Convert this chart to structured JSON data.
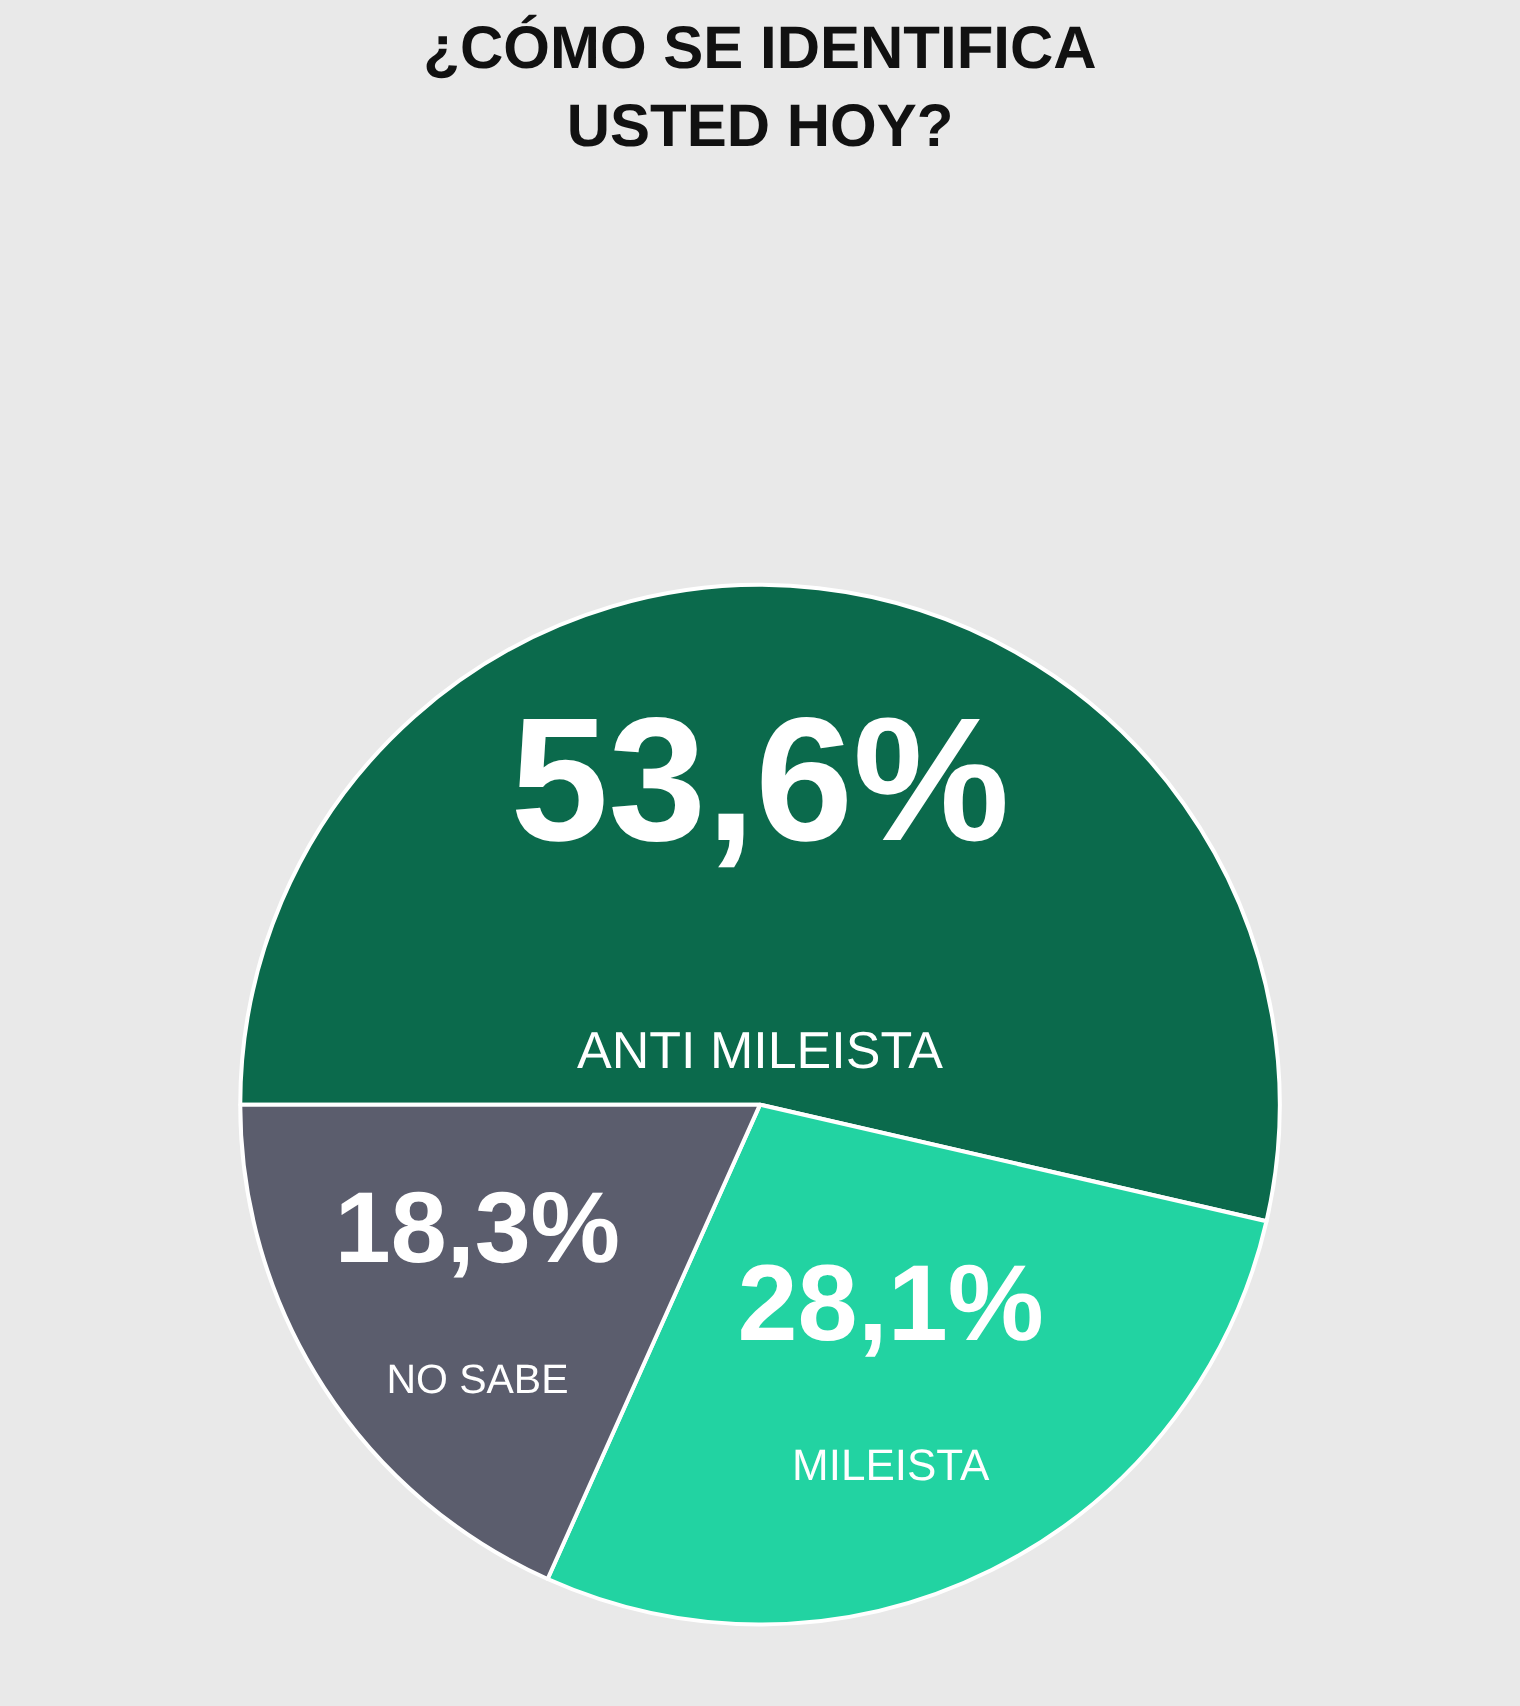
{
  "chart_data": {
    "type": "pie",
    "title": "¿CÓMO SE IDENTIFICA USTED HOY?",
    "categories": [
      "ANTI MILEISTA",
      "MILEISTA",
      "NO SABE"
    ],
    "values": [
      53.6,
      28.1,
      18.3
    ],
    "colors": [
      "#0b6a4c",
      "#22d3a2",
      "#5b5d6d"
    ],
    "value_labels": [
      "53,6%",
      "28,1%",
      "18,3%"
    ]
  }
}
